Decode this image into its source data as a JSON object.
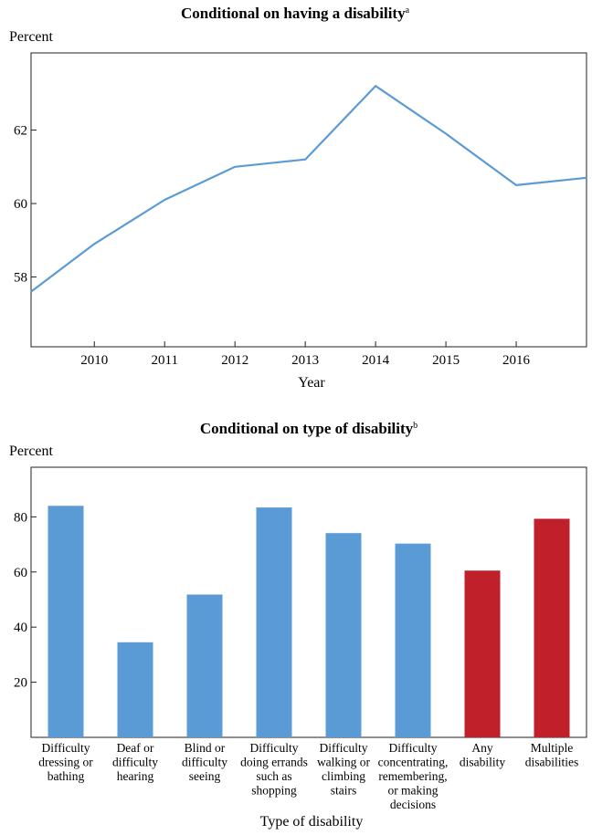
{
  "chart_data": [
    {
      "type": "line",
      "title": "Conditional on having a disability",
      "title_note": "a",
      "ylabel": "Percent",
      "xlabel": "Year",
      "xlim": [
        2009.1,
        2017
      ],
      "ylim": [
        56.1,
        64.1
      ],
      "xticks": [
        2010,
        2011,
        2012,
        2013,
        2014,
        2015,
        2016
      ],
      "yticks": [
        58,
        60,
        62
      ],
      "color": "#5b9bd5",
      "x": [
        2009.1,
        2010,
        2011,
        2012,
        2013,
        2014,
        2015,
        2016,
        2017
      ],
      "y": [
        57.6,
        58.9,
        60.1,
        61.0,
        61.2,
        63.2,
        61.9,
        60.5,
        60.7
      ]
    },
    {
      "type": "bar",
      "title": "Conditional on type of disability",
      "title_note": "b",
      "ylabel": "Percent",
      "xlabel": "Type of disability",
      "ylim": [
        0,
        98
      ],
      "yticks": [
        20,
        40,
        60,
        80
      ],
      "categories": [
        [
          "Difficulty",
          "dressing or",
          "bathing"
        ],
        [
          "Deaf or",
          "difficulty",
          "hearing"
        ],
        [
          "Blind or",
          "difficulty",
          "seeing"
        ],
        [
          "Difficulty",
          "doing errands",
          "such as",
          "shopping"
        ],
        [
          "Difficulty",
          "walking or",
          "climbing",
          "stairs"
        ],
        [
          "Difficulty",
          "concentrating,",
          "remembering,",
          "or making",
          "decisions"
        ],
        [
          "Any",
          "disability"
        ],
        [
          "Multiple",
          "disabilities"
        ]
      ],
      "values": [
        84,
        34.5,
        51.8,
        83.4,
        74.1,
        70.3,
        60.5,
        79.3
      ],
      "colors": [
        "#5b9bd5",
        "#5b9bd5",
        "#5b9bd5",
        "#5b9bd5",
        "#5b9bd5",
        "#5b9bd5",
        "#c0202a",
        "#c0202a"
      ]
    }
  ]
}
